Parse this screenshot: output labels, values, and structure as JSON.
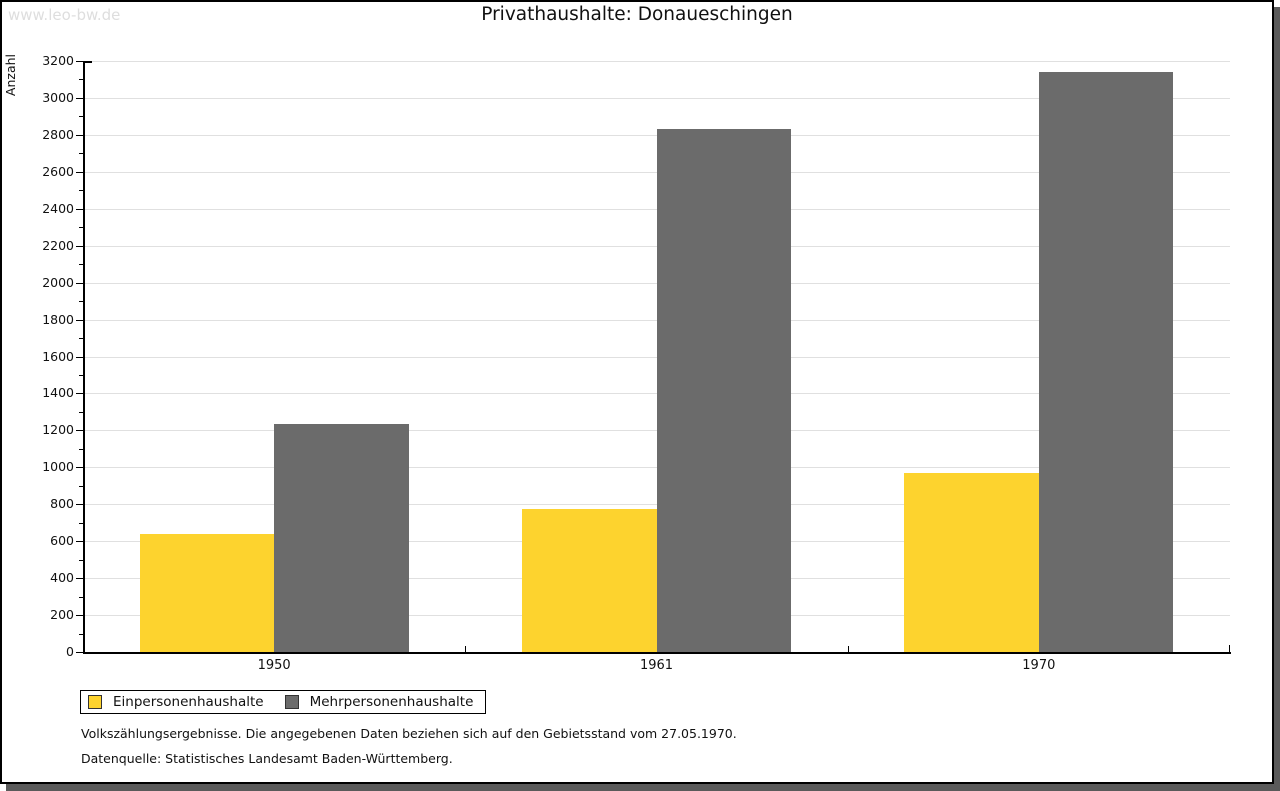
{
  "watermark": "www.leo-bw.de",
  "title": "Privathaushalte: Donaueschingen",
  "chart_data": {
    "type": "bar",
    "title": "Privathaushalte: Donaueschingen",
    "categories": [
      "1950",
      "1961",
      "1970"
    ],
    "series": [
      {
        "name": "Einpersonenhaushalte",
        "color": "#fdd32e",
        "values": [
          640,
          775,
          970
        ]
      },
      {
        "name": "Mehrpersonenhaushalte",
        "color": "#6b6b6b",
        "values": [
          1235,
          2830,
          3140
        ]
      }
    ],
    "xlabel": "",
    "ylabel": "Anzahl",
    "ylim": [
      0,
      3200
    ],
    "ytick_step": 200,
    "yminor_step": 100,
    "grid": true,
    "legend_position": "bottom-left",
    "grid_color": "#e0e0e0"
  },
  "footnotes": [
    "Volkszählungsergebnisse. Die angegebenen Daten beziehen sich auf den Gebietsstand vom 27.05.1970.",
    "Datenquelle: Statistisches Landesamt Baden-Württemberg."
  ]
}
